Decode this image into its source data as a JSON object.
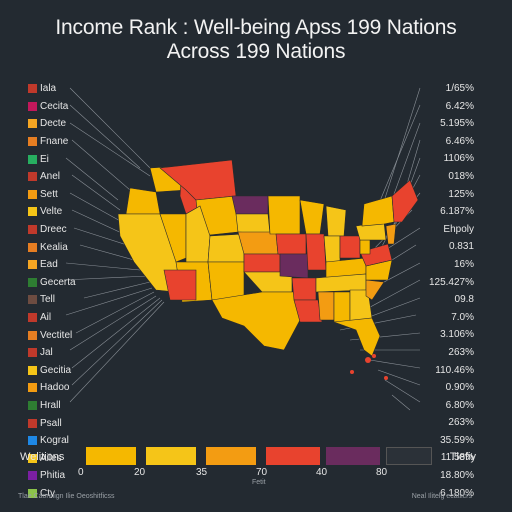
{
  "title_line1": "Income Rank : Well-being Apss 199 Nations",
  "title_line2": "Across 199 Nations",
  "left_labels": [
    {
      "text": "Iala",
      "color": "#c0392b"
    },
    {
      "text": "Cecita",
      "color": "#c2185b"
    },
    {
      "text": "Decte",
      "color": "#f5a623"
    },
    {
      "text": "Fnane",
      "color": "#e67e22"
    },
    {
      "text": "Ei",
      "color": "#27ae60"
    },
    {
      "text": "Anel",
      "color": "#c0392b"
    },
    {
      "text": "Sett",
      "color": "#f39c12"
    },
    {
      "text": "Velte",
      "color": "#f5c518"
    },
    {
      "text": "Dreec",
      "color": "#c0392b"
    },
    {
      "text": "Kealia",
      "color": "#e67e22"
    },
    {
      "text": "Ead",
      "color": "#f5a623"
    },
    {
      "text": "Gecerta",
      "color": "#2e7d32"
    },
    {
      "text": "Tell",
      "color": "#6d4c41"
    },
    {
      "text": "Ail",
      "color": "#c0392b"
    },
    {
      "text": "Vectitel",
      "color": "#e67e22"
    },
    {
      "text": "Jal",
      "color": "#c0392b"
    },
    {
      "text": "Gecitia",
      "color": "#f5c518"
    },
    {
      "text": "Hadoo",
      "color": "#f39c12"
    },
    {
      "text": "Hrall",
      "color": "#2e7d32"
    },
    {
      "text": "Psall",
      "color": "#c0392b"
    },
    {
      "text": "Kogral",
      "color": "#1e88e5"
    },
    {
      "text": "Ailes",
      "color": "#f5c518"
    },
    {
      "text": "Phitia",
      "color": "#7b1fa2"
    },
    {
      "text": "Cty",
      "color": "#8bc34a"
    }
  ],
  "right_labels": [
    "1/65%",
    "6.42%",
    "5.195%",
    "6.46%",
    "1106%",
    "018%",
    "125%",
    "6.187%",
    "Ehpoly",
    "0.831",
    "16%",
    "125.427%",
    "09.8",
    "7.0%",
    "3.106%",
    "263%",
    "110.46%",
    "0.90%",
    "6.80%",
    "263%",
    "35.59%",
    "11.58%",
    "18.80%",
    "6.180%"
  ],
  "legend": {
    "left_label": "Welitions",
    "right_label": "Tlefiy",
    "ticks": [
      "0",
      "20",
      "35",
      "70",
      "40",
      "80"
    ],
    "sub_label": "Fetit",
    "bins": [
      {
        "color": "#f5b800"
      },
      {
        "color": "#f5c518"
      },
      {
        "color": "#f39c12"
      },
      {
        "color": "#e8432e"
      },
      {
        "color": "#6a2c5e"
      },
      {
        "color": "#2b3138"
      }
    ]
  },
  "footer_left": "Tlae Caonnign Ilie Oeoshitficss",
  "footer_right": "Neal Ilitelg ecatlicrs"
}
